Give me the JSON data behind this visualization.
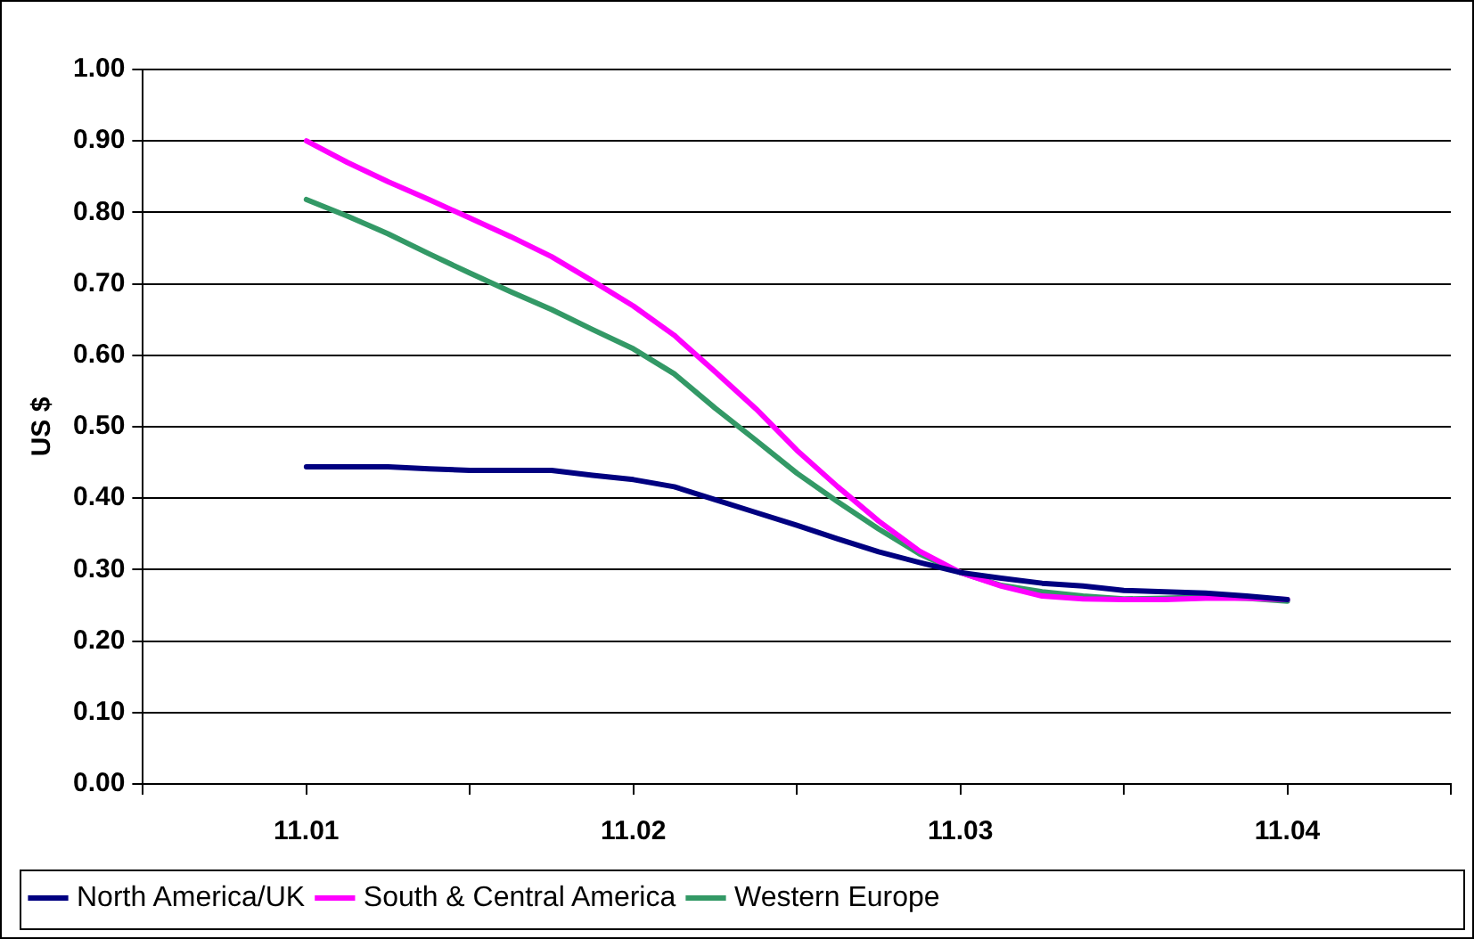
{
  "chart_data": {
    "type": "line",
    "ylabel": "US $",
    "x": [
      11.01,
      11.01125,
      11.0125,
      11.01375,
      11.015,
      11.01625,
      11.0175,
      11.01875,
      11.02,
      11.02125,
      11.0225,
      11.02375,
      11.025,
      11.02625,
      11.0275,
      11.02875,
      11.03,
      11.03125,
      11.0325,
      11.03375,
      11.035,
      11.03625,
      11.0375,
      11.03875,
      11.04
    ],
    "series": [
      {
        "name": "North America/UK",
        "color": "#000080",
        "values": [
          0.444,
          0.444,
          0.444,
          0.441,
          0.439,
          0.439,
          0.439,
          0.432,
          0.426,
          0.416,
          0.398,
          0.38,
          0.362,
          0.343,
          0.325,
          0.31,
          0.296,
          0.288,
          0.281,
          0.277,
          0.271,
          0.269,
          0.267,
          0.263,
          0.258
        ]
      },
      {
        "name": "South & Central America",
        "color": "#ff00ff",
        "values": [
          0.9,
          0.87,
          0.843,
          0.818,
          0.792,
          0.766,
          0.738,
          0.704,
          0.669,
          0.628,
          0.577,
          0.525,
          0.467,
          0.416,
          0.368,
          0.326,
          0.296,
          0.277,
          0.263,
          0.259,
          0.258,
          0.258,
          0.26,
          0.26,
          0.258
        ]
      },
      {
        "name": "Western Europe",
        "color": "#339966",
        "values": [
          0.818,
          0.795,
          0.77,
          0.742,
          0.715,
          0.689,
          0.664,
          0.636,
          0.609,
          0.574,
          0.526,
          0.481,
          0.435,
          0.395,
          0.357,
          0.322,
          0.296,
          0.278,
          0.269,
          0.263,
          0.259,
          0.26,
          0.262,
          0.26,
          0.256
        ]
      }
    ],
    "xlim": [
      11.005,
      11.045
    ],
    "xticks": [
      {
        "value": 11.005,
        "label": null
      },
      {
        "value": 11.01,
        "label": "11.01"
      },
      {
        "value": 11.015,
        "label": null
      },
      {
        "value": 11.02,
        "label": "11.02"
      },
      {
        "value": 11.025,
        "label": null
      },
      {
        "value": 11.03,
        "label": "11.03"
      },
      {
        "value": 11.035,
        "label": null
      },
      {
        "value": 11.04,
        "label": "11.04"
      },
      {
        "value": 11.045,
        "label": null
      }
    ],
    "ylim": [
      0,
      1
    ],
    "yticks": [
      {
        "value": 0,
        "label": "0.00"
      },
      {
        "value": 0.1,
        "label": "0.10"
      },
      {
        "value": 0.2,
        "label": "0.20"
      },
      {
        "value": 0.3,
        "label": "0.30"
      },
      {
        "value": 0.4,
        "label": "0.40"
      },
      {
        "value": 0.5,
        "label": "0.50"
      },
      {
        "value": 0.6,
        "label": "0.60"
      },
      {
        "value": 0.7,
        "label": "0.70"
      },
      {
        "value": 0.8,
        "label": "0.80"
      },
      {
        "value": 0.9,
        "label": "0.90"
      },
      {
        "value": 1,
        "label": "1.00"
      }
    ],
    "grid": "y",
    "legend": "bottom",
    "marker": "none",
    "line_style": "solid"
  }
}
